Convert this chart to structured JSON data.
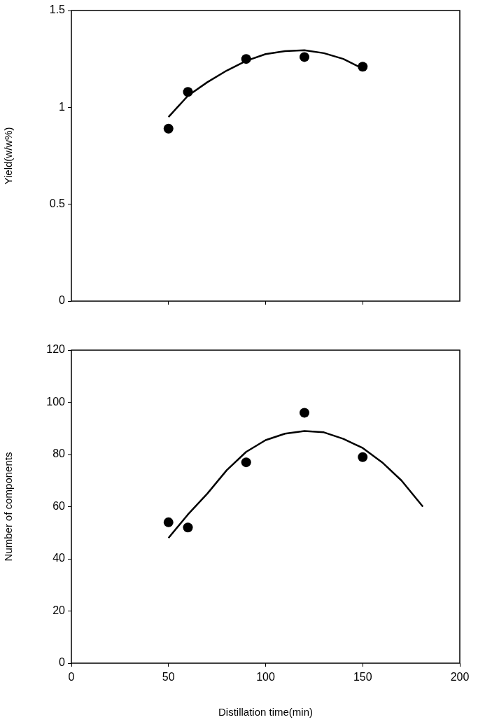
{
  "chart_data": [
    {
      "type": "scatter",
      "ylabel": "Yield(w/w%)",
      "xlim": [
        0,
        200
      ],
      "xticks": [
        {
          "value": 50,
          "label": null
        },
        {
          "value": 100,
          "label": null
        },
        {
          "value": 150,
          "label": null
        }
      ],
      "ylim": [
        0,
        1.5
      ],
      "yticks": [
        0,
        0.5,
        1,
        1.5
      ],
      "tick_labels": "y",
      "series": [
        {
          "type": "scatter",
          "marker": "circle",
          "color": "#000000",
          "x": [
            50,
            60,
            90,
            120,
            150
          ],
          "values": [
            0.89,
            1.08,
            1.25,
            1.26,
            1.21
          ]
        },
        {
          "type": "line",
          "marker": "none",
          "color": "#000000",
          "x": [
            50,
            60,
            70,
            80,
            90,
            100,
            110,
            120,
            130,
            140,
            150
          ],
          "values": [
            0.95,
            1.06,
            1.13,
            1.19,
            1.24,
            1.275,
            1.29,
            1.295,
            1.28,
            1.25,
            1.2
          ]
        }
      ]
    },
    {
      "type": "scatter",
      "xlabel": "Distillation time(min)",
      "ylabel": "Number of components",
      "xlim": [
        0,
        200
      ],
      "xticks": [
        0,
        50,
        100,
        150,
        200
      ],
      "ylim": [
        0,
        120
      ],
      "yticks": [
        0,
        20,
        40,
        60,
        80,
        100,
        120
      ],
      "series": [
        {
          "type": "scatter",
          "marker": "circle",
          "color": "#000000",
          "x": [
            50,
            60,
            90,
            120,
            150
          ],
          "values": [
            54,
            52,
            77,
            96,
            79
          ]
        },
        {
          "type": "line",
          "marker": "none",
          "color": "#000000",
          "x": [
            50,
            60,
            70,
            80,
            90,
            100,
            110,
            120,
            130,
            140,
            150,
            160,
            170,
            181
          ],
          "values": [
            48,
            57,
            65,
            74,
            81,
            85.5,
            88,
            89,
            88.5,
            86,
            82.5,
            77,
            70,
            60
          ]
        }
      ]
    }
  ]
}
